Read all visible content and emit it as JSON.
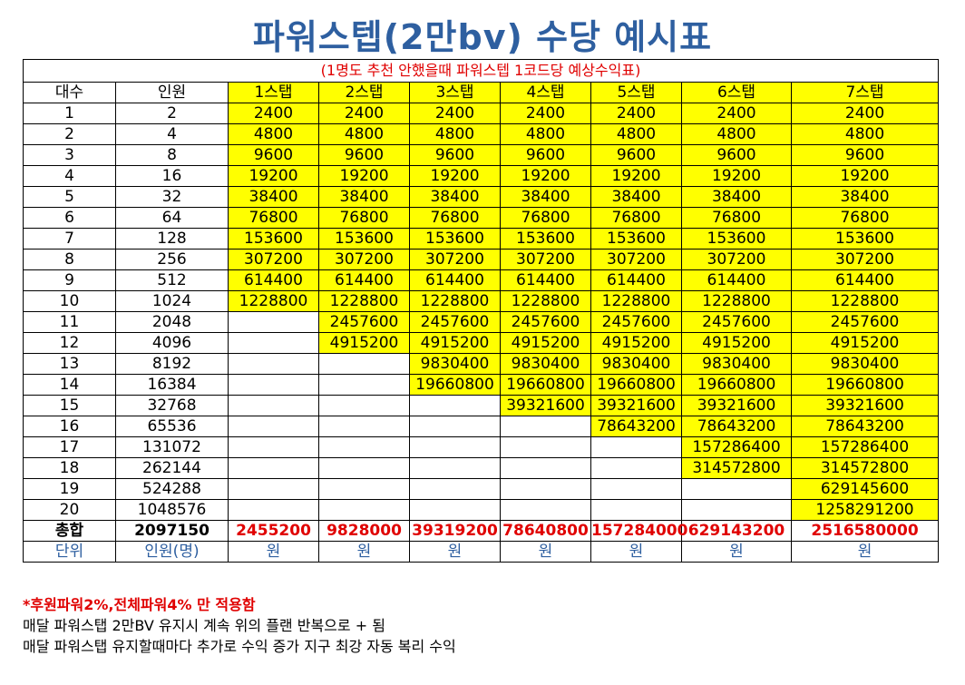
{
  "title": "파워스텝(2만bv) 수당 예시표",
  "subtitle": "(1명도 추천 안했을때 파워스텝 1코드당 예상수익표)",
  "headers": [
    "대수",
    "인원",
    "1스탭",
    "2스탭",
    "3스탭",
    "4스탭",
    "5스탭",
    "6스탭",
    "7스탭"
  ],
  "rows": [
    {
      "gen": "1",
      "people": "2",
      "steps": [
        "2400",
        "2400",
        "2400",
        "2400",
        "2400",
        "2400",
        "2400"
      ]
    },
    {
      "gen": "2",
      "people": "4",
      "steps": [
        "4800",
        "4800",
        "4800",
        "4800",
        "4800",
        "4800",
        "4800"
      ]
    },
    {
      "gen": "3",
      "people": "8",
      "steps": [
        "9600",
        "9600",
        "9600",
        "9600",
        "9600",
        "9600",
        "9600"
      ]
    },
    {
      "gen": "4",
      "people": "16",
      "steps": [
        "19200",
        "19200",
        "19200",
        "19200",
        "19200",
        "19200",
        "19200"
      ]
    },
    {
      "gen": "5",
      "people": "32",
      "steps": [
        "38400",
        "38400",
        "38400",
        "38400",
        "38400",
        "38400",
        "38400"
      ]
    },
    {
      "gen": "6",
      "people": "64",
      "steps": [
        "76800",
        "76800",
        "76800",
        "76800",
        "76800",
        "76800",
        "76800"
      ]
    },
    {
      "gen": "7",
      "people": "128",
      "steps": [
        "153600",
        "153600",
        "153600",
        "153600",
        "153600",
        "153600",
        "153600"
      ]
    },
    {
      "gen": "8",
      "people": "256",
      "steps": [
        "307200",
        "307200",
        "307200",
        "307200",
        "307200",
        "307200",
        "307200"
      ]
    },
    {
      "gen": "9",
      "people": "512",
      "steps": [
        "614400",
        "614400",
        "614400",
        "614400",
        "614400",
        "614400",
        "614400"
      ]
    },
    {
      "gen": "10",
      "people": "1024",
      "steps": [
        "1228800",
        "1228800",
        "1228800",
        "1228800",
        "1228800",
        "1228800",
        "1228800"
      ]
    },
    {
      "gen": "11",
      "people": "2048",
      "steps": [
        "",
        "2457600",
        "2457600",
        "2457600",
        "2457600",
        "2457600",
        "2457600"
      ]
    },
    {
      "gen": "12",
      "people": "4096",
      "steps": [
        "",
        "4915200",
        "4915200",
        "4915200",
        "4915200",
        "4915200",
        "4915200"
      ]
    },
    {
      "gen": "13",
      "people": "8192",
      "steps": [
        "",
        "",
        "9830400",
        "9830400",
        "9830400",
        "9830400",
        "9830400"
      ]
    },
    {
      "gen": "14",
      "people": "16384",
      "steps": [
        "",
        "",
        "19660800",
        "19660800",
        "19660800",
        "19660800",
        "19660800"
      ]
    },
    {
      "gen": "15",
      "people": "32768",
      "steps": [
        "",
        "",
        "",
        "39321600",
        "39321600",
        "39321600",
        "39321600"
      ]
    },
    {
      "gen": "16",
      "people": "65536",
      "steps": [
        "",
        "",
        "",
        "",
        "78643200",
        "78643200",
        "78643200"
      ]
    },
    {
      "gen": "17",
      "people": "131072",
      "steps": [
        "",
        "",
        "",
        "",
        "",
        "157286400",
        "157286400"
      ]
    },
    {
      "gen": "18",
      "people": "262144",
      "steps": [
        "",
        "",
        "",
        "",
        "",
        "314572800",
        "314572800"
      ]
    },
    {
      "gen": "19",
      "people": "524288",
      "steps": [
        "",
        "",
        "",
        "",
        "",
        "",
        "629145600"
      ]
    },
    {
      "gen": "20",
      "people": "1048576",
      "steps": [
        "",
        "",
        "",
        "",
        "",
        "",
        "1258291200"
      ]
    }
  ],
  "total": {
    "label": "총합",
    "people": "2097150",
    "steps": [
      "2455200",
      "9828000",
      "39319200",
      "78640800",
      "157284000",
      "629143200",
      "2516580000"
    ]
  },
  "unit_row": {
    "label": "단위",
    "people": "인원(명)",
    "steps": [
      "원",
      "원",
      "원",
      "원",
      "원",
      "원",
      "원"
    ]
  },
  "notes": {
    "red": "*후원파워2%,전체파워4% 만 적용함",
    "line1": "매달 파워스탭 2만BV 유지시 계속 위의 플랜 반복으로 + 됨",
    "line2": "매달 파워스탭 유지할때마다 추가로 수익 증가 지구 최강 자동 복리 수익"
  }
}
